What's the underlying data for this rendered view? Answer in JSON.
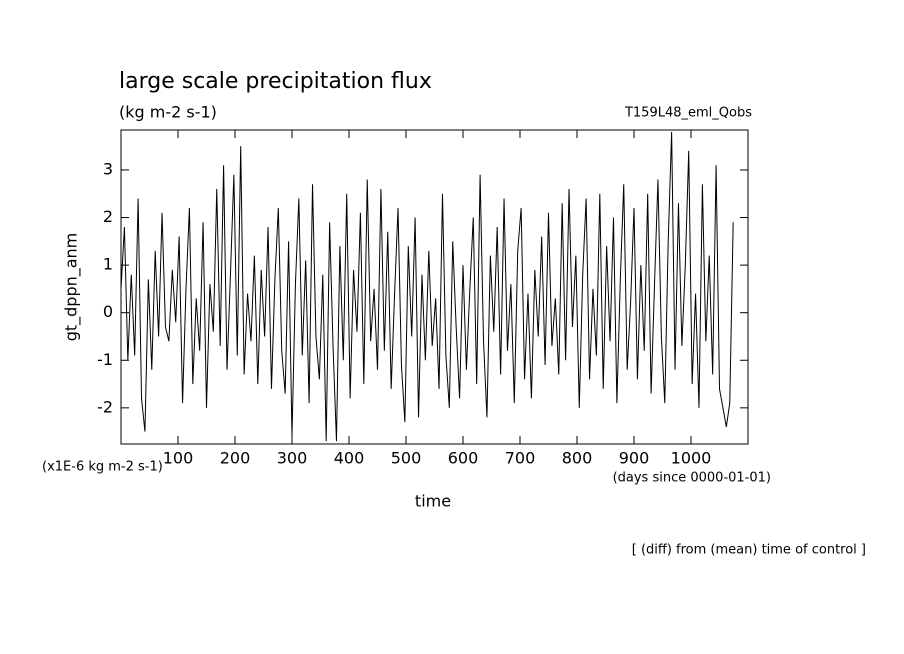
{
  "chart_data": {
    "type": "line",
    "title": "large scale precipitation flux",
    "subtitle": "(kg m-2 s-1)",
    "run_label": "T159L48_eml_Qobs",
    "ylabel": "gt_dppn_anm",
    "yunit": "(x1E-6 kg m-2 s-1)",
    "xunit": "(days since 0000-01-01)",
    "xlabel": "time",
    "note": "[ (diff) from (mean) time of control ]",
    "xlim": [
      0,
      1100
    ],
    "ylim": [
      -2.76,
      3.84
    ],
    "xticks": [
      100,
      200,
      300,
      400,
      500,
      600,
      700,
      800,
      900,
      1000
    ],
    "yticks": [
      -2,
      -1,
      0,
      1,
      2,
      3
    ],
    "series": [
      {
        "color": "#000000",
        "x": [
          0,
          6,
          12,
          18,
          24,
          30,
          36,
          42,
          48,
          54,
          60,
          66,
          72,
          78,
          84,
          90,
          96,
          102,
          108,
          114,
          120,
          126,
          132,
          138,
          144,
          150,
          156,
          162,
          168,
          174,
          180,
          186,
          192,
          198,
          204,
          210,
          216,
          222,
          228,
          234,
          240,
          246,
          252,
          258,
          264,
          270,
          276,
          282,
          288,
          294,
          300,
          306,
          312,
          318,
          324,
          330,
          336,
          342,
          348,
          354,
          360,
          366,
          372,
          378,
          384,
          390,
          396,
          402,
          408,
          414,
          420,
          426,
          432,
          438,
          444,
          450,
          456,
          462,
          468,
          474,
          480,
          486,
          492,
          498,
          504,
          510,
          516,
          522,
          528,
          534,
          540,
          546,
          552,
          558,
          564,
          570,
          576,
          582,
          588,
          594,
          600,
          606,
          612,
          618,
          624,
          630,
          636,
          642,
          648,
          654,
          660,
          666,
          672,
          678,
          684,
          690,
          696,
          702,
          708,
          714,
          720,
          726,
          732,
          738,
          744,
          750,
          756,
          762,
          768,
          774,
          780,
          786,
          792,
          798,
          804,
          810,
          816,
          822,
          828,
          834,
          840,
          846,
          852,
          858,
          864,
          870,
          876,
          882,
          888,
          894,
          900,
          906,
          912,
          918,
          924,
          930,
          936,
          942,
          948,
          954,
          960,
          966,
          972,
          978,
          984,
          990,
          996,
          1002,
          1008,
          1014,
          1020,
          1026,
          1032,
          1038,
          1044,
          1050,
          1056,
          1062,
          1068,
          1074
        ],
        "values": [
          0.5,
          1.8,
          -1.0,
          0.8,
          -0.9,
          2.4,
          -1.8,
          -2.5,
          0.7,
          -1.2,
          1.3,
          -0.5,
          2.1,
          -0.3,
          -0.6,
          0.9,
          -0.2,
          1.6,
          -1.9,
          0.5,
          2.2,
          -1.5,
          0.3,
          -0.8,
          1.9,
          -2.0,
          0.6,
          -0.4,
          2.6,
          -0.7,
          3.1,
          -1.2,
          0.8,
          2.9,
          -0.9,
          3.5,
          -1.3,
          0.4,
          -0.6,
          1.2,
          -1.5,
          0.9,
          -0.5,
          1.8,
          -1.6,
          0.7,
          2.2,
          -0.8,
          -1.7,
          1.5,
          -2.6,
          0.6,
          2.4,
          -0.9,
          1.1,
          -1.9,
          2.7,
          -0.5,
          -1.4,
          0.8,
          -2.7,
          1.9,
          -0.7,
          -2.7,
          1.4,
          -1.0,
          2.5,
          -1.8,
          0.9,
          -0.4,
          2.1,
          -1.5,
          2.8,
          -0.6,
          0.5,
          -1.2,
          2.6,
          -0.8,
          1.7,
          -1.6,
          0.4,
          2.2,
          -1.1,
          -2.3,
          1.4,
          -0.5,
          2.0,
          -2.2,
          0.8,
          -1.0,
          1.3,
          -0.7,
          0.3,
          -1.6,
          2.5,
          -0.9,
          -2.0,
          1.5,
          -0.3,
          -1.8,
          1.0,
          -1.2,
          0.5,
          2.0,
          -1.5,
          2.9,
          -0.6,
          -2.2,
          1.2,
          -0.4,
          1.8,
          -1.3,
          2.4,
          -0.8,
          0.6,
          -1.9,
          1.3,
          2.2,
          -1.4,
          0.4,
          -1.8,
          0.9,
          -0.5,
          1.6,
          -1.1,
          2.1,
          -0.7,
          0.3,
          -1.3,
          2.3,
          -1.0,
          2.6,
          -0.3,
          1.2,
          -2.0,
          0.8,
          2.4,
          -1.4,
          0.5,
          -0.9,
          2.5,
          -1.6,
          1.4,
          -0.6,
          2.0,
          -1.9,
          0.7,
          2.7,
          -1.2,
          0.2,
          2.2,
          -1.4,
          1.0,
          -0.8,
          2.5,
          -1.7,
          0.6,
          2.8,
          -0.5,
          -1.9,
          1.5,
          3.8,
          -1.2,
          2.3,
          -0.7,
          1.0,
          3.4,
          -1.5,
          0.4,
          -2.0,
          2.7,
          -0.6,
          1.2,
          -1.3,
          3.1,
          -1.6,
          -2.0,
          -2.4,
          -1.9,
          1.9
        ]
      }
    ]
  }
}
